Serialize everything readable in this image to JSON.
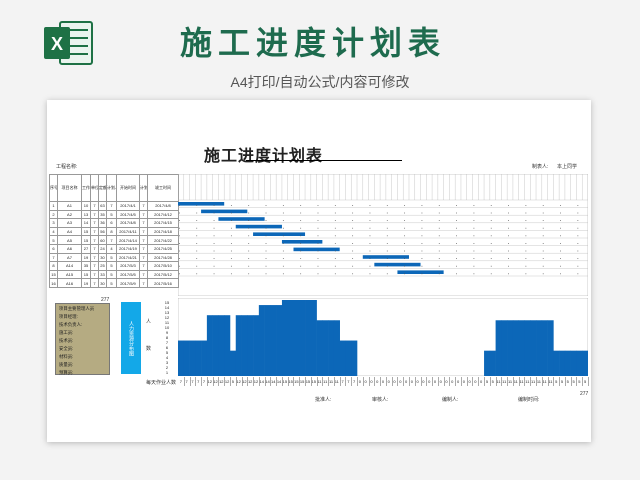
{
  "hero": {
    "title": "施工进度计划表",
    "subtitle": "A4打印/自动公式/内容可修改"
  },
  "doc": {
    "title": "施工进度计划表",
    "project_label": "工程名称:",
    "maker_label": "制表人:",
    "maker_value": "本上同学",
    "headers": [
      "序号",
      "项目名称",
      "工作量",
      "单位数量",
      "定额工日",
      "计划人数",
      "开始时间",
      "计划天数",
      "竣工时间"
    ],
    "rows": [
      {
        "no": "1",
        "name": "A1",
        "a": "10",
        "b": "7",
        "c": "63",
        "d": "7",
        "start": "2017/4/1",
        "days": "7",
        "end": "2017/4/8"
      },
      {
        "no": "2",
        "name": "A2",
        "a": "13",
        "b": "7",
        "c": "35",
        "d": "5",
        "start": "2017/4/5",
        "days": "7",
        "end": "2017/4/12"
      },
      {
        "no": "3",
        "name": "A3",
        "a": "14",
        "b": "7",
        "c": "36",
        "d": "6",
        "start": "2017/4/8",
        "days": "7",
        "end": "2017/4/15"
      },
      {
        "no": "4",
        "name": "A4",
        "a": "15",
        "b": "7",
        "c": "56",
        "d": "8",
        "start": "2017/4/11",
        "days": "7",
        "end": "2017/4/18"
      },
      {
        "no": "5",
        "name": "A5",
        "a": "15",
        "b": "7",
        "c": "60",
        "d": "7",
        "start": "2017/4/14",
        "days": "7",
        "end": "2017/4/22"
      },
      {
        "no": "6",
        "name": "A6",
        "a": "27",
        "b": "7",
        "c": "24",
        "d": "4",
        "start": "2017/4/19",
        "days": "7",
        "end": "2017/4/25"
      },
      {
        "no": "7",
        "name": "A7",
        "a": "19",
        "b": "7",
        "c": "30",
        "d": "5",
        "start": "2017/4/21",
        "days": "7",
        "end": "2017/4/28"
      },
      {
        "no": "8",
        "name": "A14",
        "a": "35",
        "b": "7",
        "c": "25",
        "d": "5",
        "start": "2017/5/3",
        "days": "7",
        "end": "2017/5/10"
      },
      {
        "no": "15",
        "name": "A15",
        "a": "15",
        "b": "7",
        "c": "33",
        "d": "5",
        "start": "2017/5/5",
        "days": "7",
        "end": "2017/5/12"
      },
      {
        "no": "16",
        "name": "A16",
        "a": "19",
        "b": "7",
        "c": "30",
        "d": "5",
        "start": "2017/5/9",
        "days": "7",
        "end": "2017/5/16"
      }
    ],
    "legend_title": "项目主要管理人员",
    "legend_items": [
      "项目经理:",
      "技术负责人:",
      "施工员:",
      "技术员:",
      "安全员:",
      "材料员:",
      "质量员:",
      "预算员:"
    ],
    "resource_label": "人力资源分布图",
    "person_label_a": "人",
    "person_label_b": "数",
    "daily_label": "每天作业人数",
    "footer": {
      "checker": "批准人:",
      "reviewer": "审核人:",
      "editor": "编制人:",
      "date": "编制时间:"
    },
    "note_a": "277",
    "note_b": "277",
    "y_ticks": [
      "15",
      "14",
      "13",
      "12",
      "11",
      "10",
      "9",
      "8",
      "7",
      "6",
      "5",
      "4",
      "3",
      "2",
      "1"
    ]
  },
  "chart_data": {
    "type": "bar",
    "title": "",
    "xlabel": "",
    "ylabel": "",
    "ylim": [
      0,
      15
    ],
    "values": [
      7,
      7,
      7,
      7,
      7,
      12,
      12,
      12,
      12,
      5,
      12,
      12,
      12,
      12,
      14,
      14,
      14,
      14,
      15,
      15,
      15,
      15,
      15,
      15,
      11,
      11,
      11,
      11,
      7,
      7,
      7,
      0,
      0,
      0,
      0,
      0,
      0,
      0,
      0,
      0,
      0,
      0,
      0,
      0,
      0,
      0,
      0,
      0,
      0,
      0,
      0,
      0,
      0,
      5,
      5,
      11,
      11,
      11,
      11,
      11,
      11,
      11,
      11,
      11,
      11,
      5,
      5,
      5,
      5,
      5,
      5
    ]
  }
}
